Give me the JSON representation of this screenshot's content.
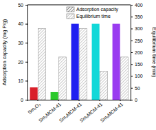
{
  "chart_data": {
    "type": "bar",
    "categories": [
      "Sm₂O₃",
      "Sm₂MCM-41",
      "Sm₄MCM-41",
      "Sm₆MCM-41",
      "Sm₈MCM-41"
    ],
    "series": [
      {
        "name": "Adsorption capacity",
        "type": "bar",
        "axis": "y",
        "colors": [
          "#d9202a",
          "#2cc92c",
          "#2020f0",
          "#12d8d8",
          "#9a3cf0"
        ],
        "values": [
          6.5,
          4,
          40,
          40,
          40
        ]
      },
      {
        "name": "Equilibrium time",
        "type": "bar",
        "axis": "y2",
        "color": "#a8a8a8",
        "values": [
          300,
          180,
          300,
          120,
          180
        ]
      }
    ],
    "y_label": "Adsorption capacity (mg P/g)",
    "y2_label": "Equilibrium time (min)",
    "ylim": [
      0,
      50
    ],
    "yticks": [
      0,
      10,
      20,
      30,
      40,
      50
    ],
    "y2lim": [
      0,
      400
    ],
    "y2ticks": [
      0,
      50,
      100,
      150,
      200,
      250,
      300,
      350,
      400
    ],
    "legend": "top"
  }
}
